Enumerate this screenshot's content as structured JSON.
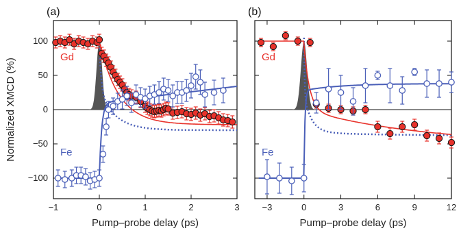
{
  "figure": {
    "ylabel": "Normalized XMCD (%)",
    "xlabel": "Pump–probe delay (ps)"
  },
  "colors": {
    "gd": "#e8322b",
    "gd_edge": "#1a1a1a",
    "fe": "#4a5fb8",
    "pulse": "#555555",
    "axis": "#111111"
  },
  "chart_data": [
    {
      "type": "scatter",
      "panel_label": "(a)",
      "xlabel": "Pump–probe delay (ps)",
      "ylabel": "Normalized XMCD (%)",
      "xlim": [
        -1,
        3
      ],
      "ylim": [
        -130,
        130
      ],
      "xticks": [
        -1,
        0,
        1,
        2,
        3
      ],
      "yticks": [
        -100,
        -50,
        0,
        50,
        100
      ],
      "zero_line": true,
      "pulse": {
        "center": 0.0,
        "width": 0.06,
        "height": 100
      },
      "series": [
        {
          "name": "Gd",
          "marker": "filled-circle",
          "x": [
            -0.95,
            -0.85,
            -0.75,
            -0.65,
            -0.55,
            -0.45,
            -0.35,
            -0.25,
            -0.15,
            -0.05,
            0.0,
            0.05,
            0.1,
            0.15,
            0.2,
            0.25,
            0.3,
            0.35,
            0.4,
            0.45,
            0.5,
            0.55,
            0.6,
            0.65,
            0.7,
            0.8,
            0.9,
            1.0,
            1.05,
            1.1,
            1.15,
            1.2,
            1.25,
            1.3,
            1.35,
            1.4,
            1.45,
            1.5,
            1.6,
            1.7,
            1.8,
            1.9,
            2.0,
            2.1,
            2.2,
            2.3,
            2.4,
            2.5,
            2.6,
            2.7,
            2.8,
            2.9
          ],
          "y": [
            98,
            100,
            98,
            102,
            96,
            100,
            98,
            96,
            100,
            98,
            102,
            82,
            78,
            72,
            68,
            62,
            55,
            50,
            44,
            40,
            36,
            30,
            25,
            22,
            20,
            18,
            12,
            5,
            2,
            0,
            -2,
            -3,
            -2,
            -1,
            -2,
            0,
            2,
            1,
            -5,
            -4,
            -3,
            -6,
            -7,
            -5,
            -8,
            -6,
            -10,
            -9,
            -12,
            -15,
            -16,
            -18
          ],
          "err": [
            8,
            8,
            8,
            8,
            8,
            8,
            8,
            8,
            8,
            8,
            8,
            9,
            9,
            9,
            9,
            9,
            9,
            9,
            9,
            9,
            9,
            9,
            9,
            9,
            9,
            9,
            9,
            9,
            9,
            9,
            9,
            9,
            9,
            9,
            9,
            9,
            9,
            9,
            9,
            9,
            9,
            9,
            9,
            9,
            9,
            9,
            9,
            9,
            9,
            9,
            9,
            9
          ]
        },
        {
          "name": "Fe",
          "marker": "open-circle",
          "x": [
            -0.9,
            -0.75,
            -0.6,
            -0.5,
            -0.4,
            -0.3,
            -0.2,
            -0.1,
            0.0,
            0.08,
            0.15,
            0.2,
            0.3,
            0.4,
            0.5,
            0.6,
            0.7,
            0.8,
            0.9,
            1.0,
            1.1,
            1.2,
            1.3,
            1.4,
            1.5,
            1.6,
            1.7,
            1.8,
            1.9,
            2.0,
            2.1,
            2.2,
            2.3,
            2.5,
            2.7
          ],
          "y": [
            -100,
            -102,
            -100,
            -96,
            -96,
            -98,
            -104,
            -102,
            -100,
            -65,
            -25,
            0,
            5,
            12,
            15,
            20,
            10,
            22,
            18,
            16,
            20,
            22,
            25,
            30,
            28,
            20,
            25,
            25,
            28,
            35,
            48,
            40,
            22,
            25,
            28
          ],
          "err": [
            12,
            12,
            12,
            12,
            12,
            12,
            12,
            12,
            12,
            12,
            12,
            12,
            12,
            12,
            14,
            14,
            14,
            14,
            14,
            14,
            14,
            14,
            16,
            16,
            16,
            16,
            16,
            16,
            16,
            18,
            18,
            18,
            18,
            18,
            18
          ]
        }
      ]
    },
    {
      "type": "scatter",
      "panel_label": "(b)",
      "xlabel": "Pump–probe delay (ps)",
      "xlim": [
        -4,
        12
      ],
      "ylim": [
        -130,
        130
      ],
      "xticks": [
        -3,
        0,
        3,
        6,
        9,
        12
      ],
      "yticks": [
        -100,
        -50,
        0,
        50,
        100
      ],
      "zero_line": true,
      "pulse": {
        "center": 0.0,
        "width": 0.25,
        "height": 100
      },
      "series": [
        {
          "name": "Gd",
          "marker": "filled-circle",
          "x": [
            -3.5,
            -2.5,
            -1.5,
            -0.5,
            0.5,
            1.0,
            2.0,
            3.0,
            4.0,
            5.0,
            6.0,
            7.0,
            8.0,
            9.0,
            10.0,
            11.0,
            12.0
          ],
          "y": [
            98,
            92,
            108,
            100,
            98,
            8,
            2,
            0,
            -2,
            0,
            -25,
            -35,
            -25,
            -22,
            -38,
            -42,
            -48
          ],
          "err": [
            6,
            6,
            6,
            6,
            6,
            6,
            6,
            6,
            6,
            6,
            8,
            8,
            8,
            8,
            8,
            8,
            8
          ]
        },
        {
          "name": "Fe",
          "marker": "open-circle",
          "x": [
            -3.0,
            -2.0,
            -1.0,
            0.0,
            1.0,
            2.0,
            3.0,
            4.0,
            5.0,
            6.0,
            7.0,
            8.0,
            9.0,
            10.0,
            11.0,
            12.0
          ],
          "y": [
            -98,
            -100,
            -104,
            -100,
            10,
            30,
            25,
            12,
            35,
            50,
            35,
            28,
            55,
            38,
            38,
            40
          ],
          "err": [
            25,
            22,
            20,
            20,
            15,
            30,
            25,
            20,
            25,
            6,
            25,
            20,
            5,
            20,
            20,
            15
          ]
        }
      ]
    }
  ]
}
